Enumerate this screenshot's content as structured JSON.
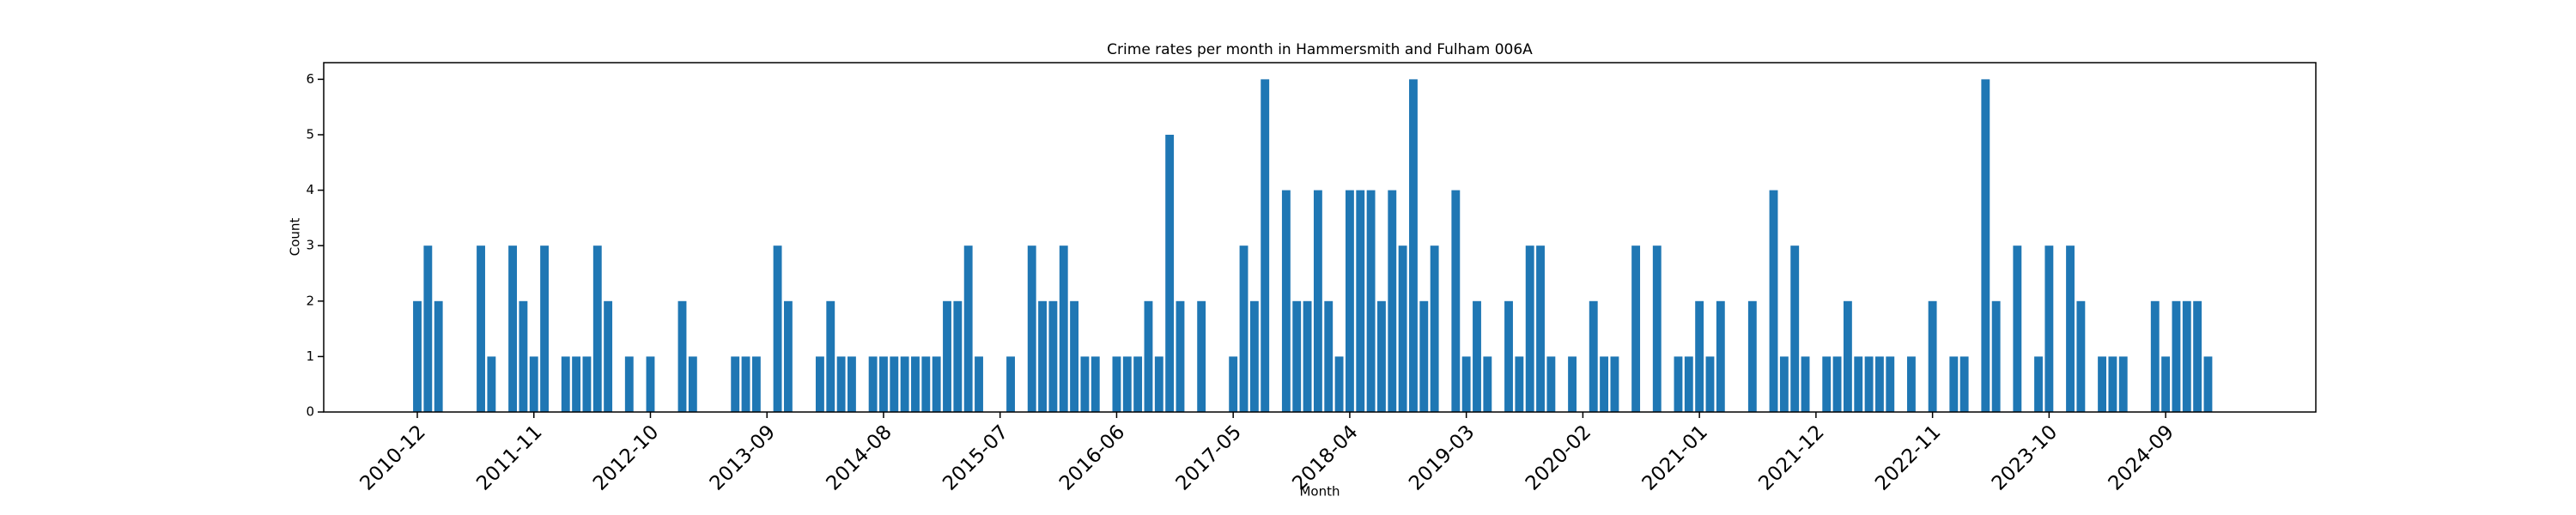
{
  "chart_data": {
    "type": "bar",
    "title": "Crime rates per month in Hammersmith and Fulham 006A",
    "x_label": "Month",
    "y_label": "Count",
    "categories": [
      "2010-12",
      null,
      null,
      null,
      null,
      null,
      null,
      null,
      null,
      null,
      null,
      "2011-11",
      null,
      null,
      null,
      null,
      null,
      null,
      null,
      null,
      null,
      null,
      "2012-10",
      null,
      null,
      null,
      null,
      null,
      null,
      null,
      null,
      null,
      null,
      "2013-09",
      null,
      null,
      null,
      null,
      null,
      null,
      null,
      null,
      null,
      null,
      "2014-08",
      null,
      null,
      null,
      null,
      null,
      null,
      null,
      null,
      null,
      null,
      "2015-07",
      null,
      null,
      null,
      null,
      null,
      null,
      null,
      null,
      null,
      null,
      "2016-06",
      null,
      null,
      null,
      null,
      null,
      null,
      null,
      null,
      null,
      null,
      "2017-05",
      null,
      null,
      null,
      null,
      null,
      null,
      null,
      null,
      null,
      null,
      "2018-04",
      null,
      null,
      null,
      null,
      null,
      null,
      null,
      null,
      null,
      null,
      "2019-03",
      null,
      null,
      null,
      null,
      null,
      null,
      null,
      null,
      null,
      null,
      "2020-02",
      null,
      null,
      null,
      null,
      null,
      null,
      null,
      null,
      null,
      null,
      "2021-01",
      null,
      null,
      null,
      null,
      null,
      null,
      null,
      null,
      null,
      null,
      "2021-12",
      null,
      null,
      null,
      null,
      null,
      null,
      null,
      null,
      null,
      null,
      "2022-11",
      null,
      null,
      null,
      null,
      null,
      null,
      null,
      null,
      null,
      null,
      "2023-10",
      null,
      null,
      null,
      null,
      null,
      null,
      null,
      null,
      null,
      null,
      "2024-09",
      null,
      null,
      null,
      null
    ],
    "values": [
      2,
      3,
      2,
      0,
      0,
      0,
      3,
      1,
      0,
      3,
      2,
      1,
      3,
      0,
      1,
      1,
      1,
      3,
      2,
      0,
      1,
      0,
      1,
      0,
      0,
      2,
      1,
      0,
      0,
      0,
      1,
      1,
      1,
      0,
      3,
      2,
      0,
      0,
      1,
      2,
      1,
      1,
      0,
      1,
      1,
      1,
      1,
      1,
      1,
      1,
      2,
      2,
      3,
      1,
      0,
      0,
      1,
      0,
      3,
      2,
      2,
      3,
      2,
      1,
      1,
      0,
      1,
      1,
      1,
      2,
      1,
      5,
      2,
      0,
      2,
      0,
      0,
      1,
      3,
      2,
      6,
      0,
      4,
      2,
      2,
      4,
      2,
      1,
      4,
      4,
      4,
      2,
      4,
      3,
      6,
      2,
      3,
      0,
      4,
      1,
      2,
      1,
      0,
      2,
      1,
      3,
      3,
      1,
      0,
      1,
      0,
      2,
      1,
      1,
      0,
      3,
      0,
      3,
      0,
      1,
      1,
      2,
      1,
      2,
      0,
      0,
      2,
      0,
      4,
      1,
      3,
      1,
      0,
      1,
      1,
      2,
      1,
      1,
      1,
      1,
      0,
      1,
      0,
      2,
      0,
      1,
      1,
      0,
      6,
      2,
      0,
      3,
      0,
      1,
      3,
      0,
      3,
      2,
      0,
      1,
      1,
      1,
      0,
      0,
      2,
      1,
      2,
      2,
      2,
      1
    ],
    "color": "#1f77b4",
    "ylim": [
      0,
      6.3
    ],
    "yticks": [
      0,
      1,
      2,
      3,
      4,
      5,
      6
    ],
    "grid": false
  }
}
